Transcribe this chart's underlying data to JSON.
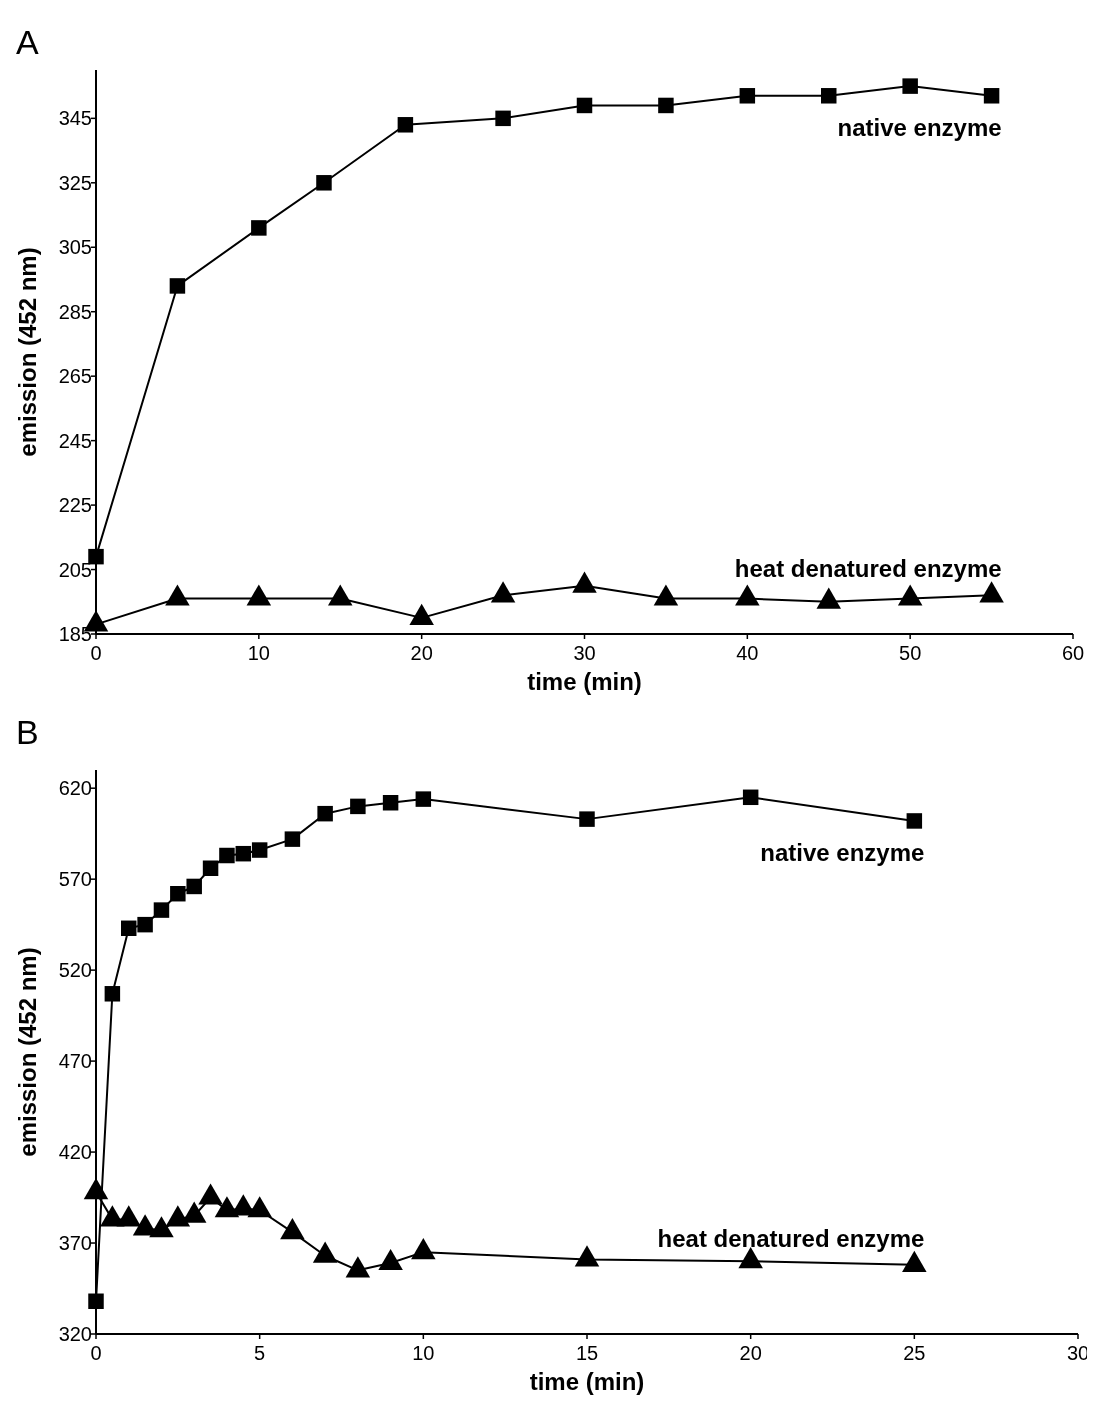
{
  "chart_data": [
    {
      "type": "line",
      "title": "A",
      "xlabel": "time (min)",
      "ylabel": "emission (452 nm)",
      "xlim": [
        0,
        60
      ],
      "xticks": [
        0,
        10,
        20,
        30,
        40,
        50,
        60
      ],
      "ylim": [
        185,
        360
      ],
      "yticks": [
        185,
        205,
        225,
        245,
        265,
        285,
        305,
        325,
        345
      ],
      "grid": false,
      "series": [
        {
          "name": "native enzyme",
          "color": "#000000",
          "marker": "square",
          "x": [
            0,
            5,
            10,
            14,
            19,
            25,
            30,
            35,
            40,
            45,
            50,
            55
          ],
          "values": [
            209,
            293,
            311,
            325,
            343,
            345,
            349,
            349,
            352,
            352,
            355,
            352
          ]
        },
        {
          "name": "heat denatured enzyme",
          "color": "#000000",
          "marker": "triangle",
          "x": [
            0,
            5,
            10,
            15,
            20,
            25,
            30,
            35,
            40,
            45,
            50,
            55
          ],
          "values": [
            188,
            196,
            196,
            196,
            190,
            197,
            200,
            196,
            196,
            195,
            196,
            197
          ]
        }
      ]
    },
    {
      "type": "line",
      "title": "B",
      "xlabel": "time (min)",
      "ylabel": "emission (452 nm)",
      "xlim": [
        0,
        30
      ],
      "xticks": [
        0,
        5,
        10,
        15,
        20,
        25,
        30
      ],
      "ylim": [
        320,
        630
      ],
      "yticks": [
        320,
        370,
        420,
        470,
        520,
        570,
        620
      ],
      "grid": false,
      "series": [
        {
          "name": "native enzyme",
          "color": "#000000",
          "marker": "square",
          "x": [
            0,
            0.5,
            1,
            1.5,
            2,
            2.5,
            3,
            3.5,
            4,
            4.5,
            5,
            6,
            7,
            8,
            9,
            10,
            15,
            20,
            25
          ],
          "values": [
            338,
            507,
            543,
            545,
            553,
            562,
            566,
            576,
            583,
            584,
            586,
            592,
            606,
            610,
            612,
            614,
            603,
            615,
            602
          ]
        },
        {
          "name": "heat denatured enzyme",
          "color": "#000000",
          "marker": "triangle",
          "x": [
            0,
            0.5,
            1,
            1.5,
            2,
            2.5,
            3,
            3.5,
            4,
            4.5,
            5,
            6,
            7,
            8,
            9,
            10,
            15,
            20,
            25
          ],
          "values": [
            398,
            383,
            383,
            378,
            377,
            383,
            385,
            395,
            388,
            389,
            388,
            376,
            363,
            355,
            359,
            365,
            361,
            360,
            358
          ]
        }
      ]
    }
  ]
}
